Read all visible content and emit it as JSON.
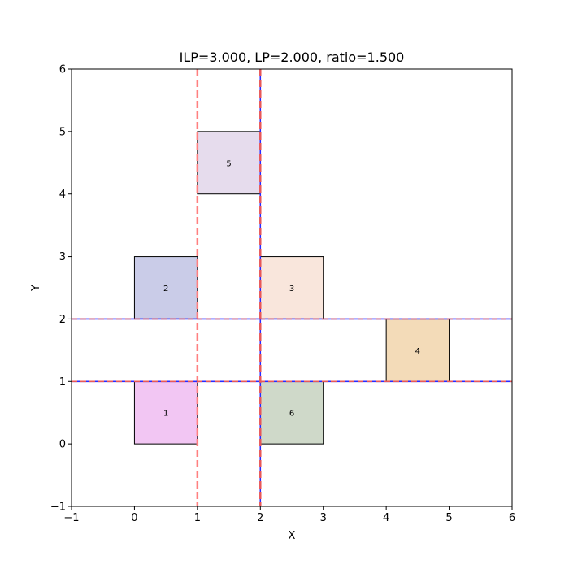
{
  "chart_data": {
    "type": "rectangles",
    "title": "ILP=3.000, LP=2.000, ratio=1.500",
    "xlabel": "X",
    "ylabel": "Y",
    "xlim": [
      -1,
      6
    ],
    "ylim": [
      -1,
      6
    ],
    "xticks": [
      -1,
      0,
      1,
      2,
      3,
      4,
      5,
      6
    ],
    "yticks": [
      -1,
      0,
      1,
      2,
      3,
      4,
      5,
      6
    ],
    "tick_labels_x": [
      "−1",
      "0",
      "1",
      "2",
      "3",
      "4",
      "5",
      "6"
    ],
    "tick_labels_y": [
      "−1",
      "0",
      "1",
      "2",
      "3",
      "4",
      "5",
      "6"
    ],
    "grid": false,
    "rectangles": [
      {
        "label": "1",
        "x": 0,
        "y": 0,
        "width": 1,
        "height": 1,
        "color": "#f2c6f3"
      },
      {
        "label": "2",
        "x": 0,
        "y": 2,
        "width": 1,
        "height": 1,
        "color": "#cacce8"
      },
      {
        "label": "3",
        "x": 2,
        "y": 2,
        "width": 1,
        "height": 1,
        "color": "#f9e6dc"
      },
      {
        "label": "4",
        "x": 4,
        "y": 1,
        "width": 1,
        "height": 1,
        "color": "#f3dbb8"
      },
      {
        "label": "5",
        "x": 1,
        "y": 4,
        "width": 1,
        "height": 1,
        "color": "#e6dced"
      },
      {
        "label": "6",
        "x": 2,
        "y": 0,
        "width": 1,
        "height": 1,
        "color": "#cfd9c9"
      }
    ],
    "vertical_lines": [
      {
        "x": 1,
        "style": "dashed",
        "color": "#ff8080"
      },
      {
        "x": 2,
        "style": "solid",
        "color": "#2a2aff"
      },
      {
        "x": 2,
        "style": "dashed",
        "color": "#e85858"
      }
    ],
    "horizontal_lines": [
      {
        "y": 1,
        "style": "solid",
        "color": "#2a2aff"
      },
      {
        "y": 1,
        "style": "dashed",
        "color": "#e85858"
      },
      {
        "y": 2,
        "style": "solid",
        "color": "#2a2aff"
      },
      {
        "y": 2,
        "style": "dashed",
        "color": "#e85858"
      }
    ]
  }
}
